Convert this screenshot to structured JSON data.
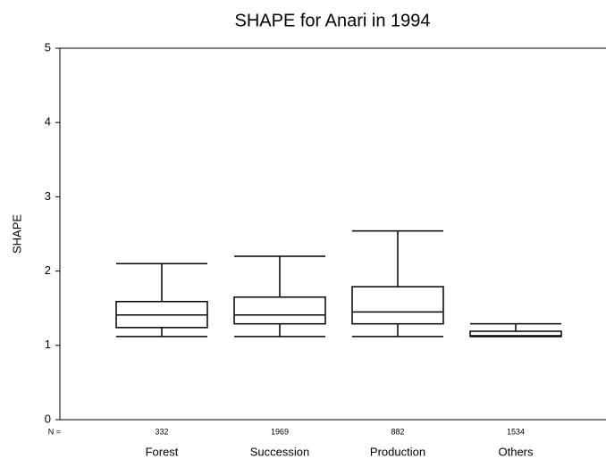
{
  "chart_data": {
    "type": "box",
    "title": "SHAPE for Anari in 1994",
    "y_label": "SHAPE",
    "categories": [
      "Forest",
      "Succession",
      "Production",
      "Others"
    ],
    "boxes": [
      {
        "min": 1.12,
        "q1": 1.24,
        "median": 1.41,
        "q3": 1.59,
        "max": 2.1
      },
      {
        "min": 1.12,
        "q1": 1.29,
        "median": 1.41,
        "q3": 1.65,
        "max": 2.2
      },
      {
        "min": 1.12,
        "q1": 1.29,
        "median": 1.45,
        "q3": 1.79,
        "max": 2.54
      },
      {
        "min": 1.12,
        "q1": 1.12,
        "median": 1.13,
        "q3": 1.19,
        "max": 1.29
      }
    ],
    "n_label": "N =",
    "n_values": [
      332,
      1969,
      882,
      1534
    ],
    "color": "#ffffff",
    "ylim": [
      0,
      5
    ],
    "yticks": [
      0,
      1,
      2,
      3,
      4,
      5
    ]
  }
}
